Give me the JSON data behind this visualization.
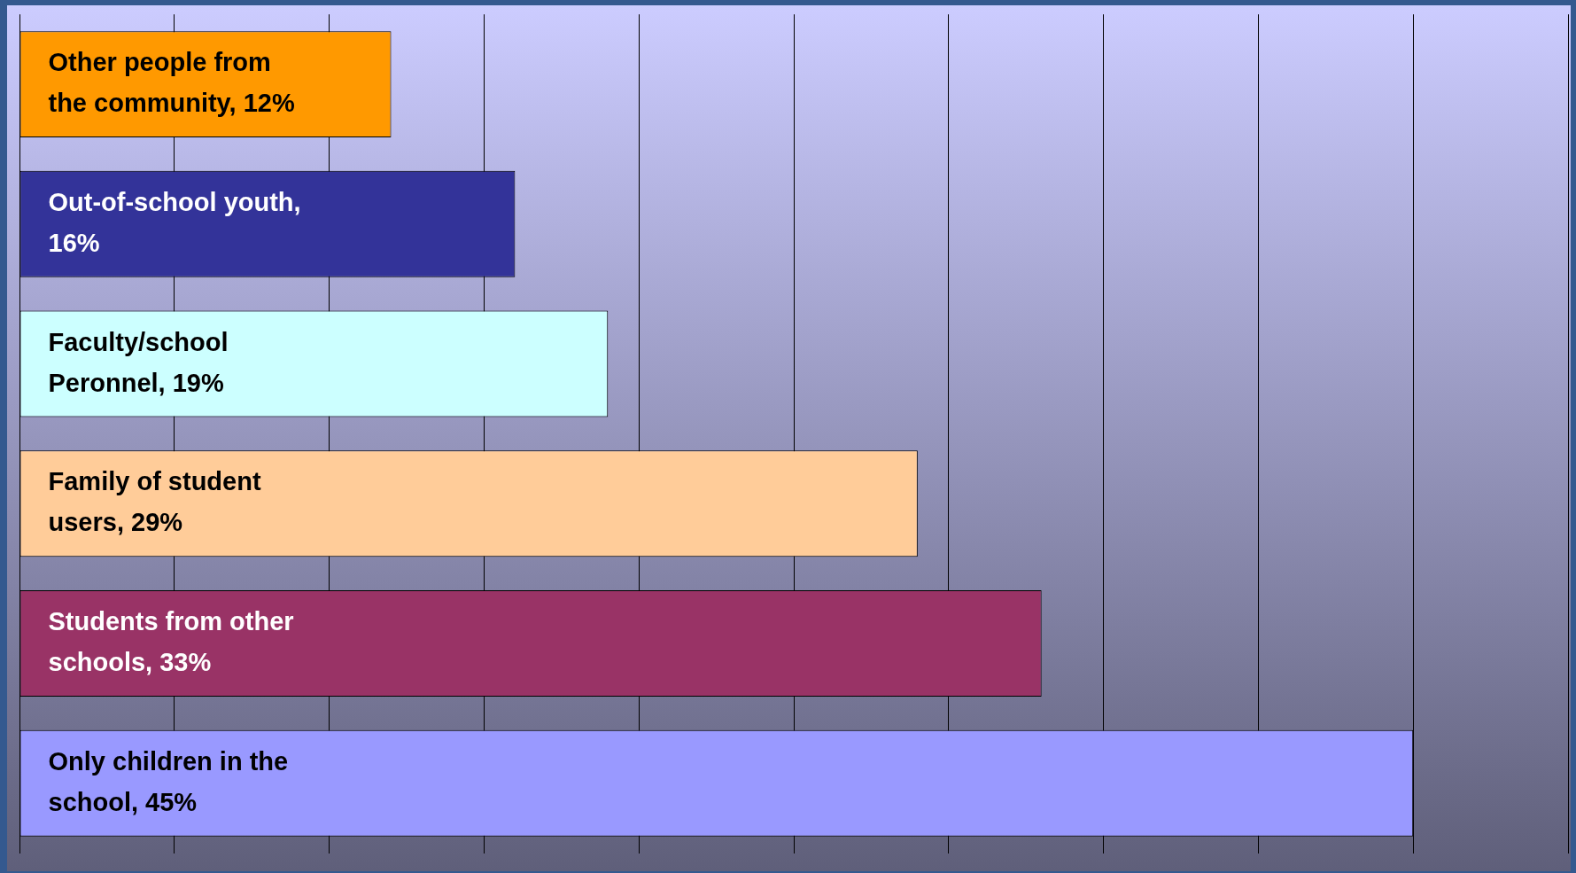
{
  "chart_data": {
    "type": "bar",
    "orientation": "horizontal",
    "categories": [
      null,
      null,
      null,
      null,
      null,
      null
    ],
    "values": [
      12,
      16,
      19,
      29,
      33,
      45
    ],
    "colors": [
      "#ff9900",
      "#333399",
      "#ccffff",
      "#ffcc99",
      "#993366",
      "#9999ff"
    ],
    "value_labels": [
      "Other people from the community, 12%",
      "Out-of-school youth, 16%",
      "Faculty/school Peronnel, 19%",
      "Family of student users, 29%",
      "Students from other schools, 33%",
      "Only children in the school, 45%"
    ],
    "xlim": [
      0,
      50
    ],
    "xticks": [
      {
        "value": 0,
        "label": null
      },
      {
        "value": 5,
        "label": null
      },
      {
        "value": 10,
        "label": null
      },
      {
        "value": 15,
        "label": null
      },
      {
        "value": 20,
        "label": null
      },
      {
        "value": 25,
        "label": null
      },
      {
        "value": 30,
        "label": null
      },
      {
        "value": 35,
        "label": null
      },
      {
        "value": 40,
        "label": null
      },
      {
        "value": 45,
        "label": null
      },
      {
        "value": 50,
        "label": null
      }
    ],
    "grid": "x",
    "legend": false
  }
}
